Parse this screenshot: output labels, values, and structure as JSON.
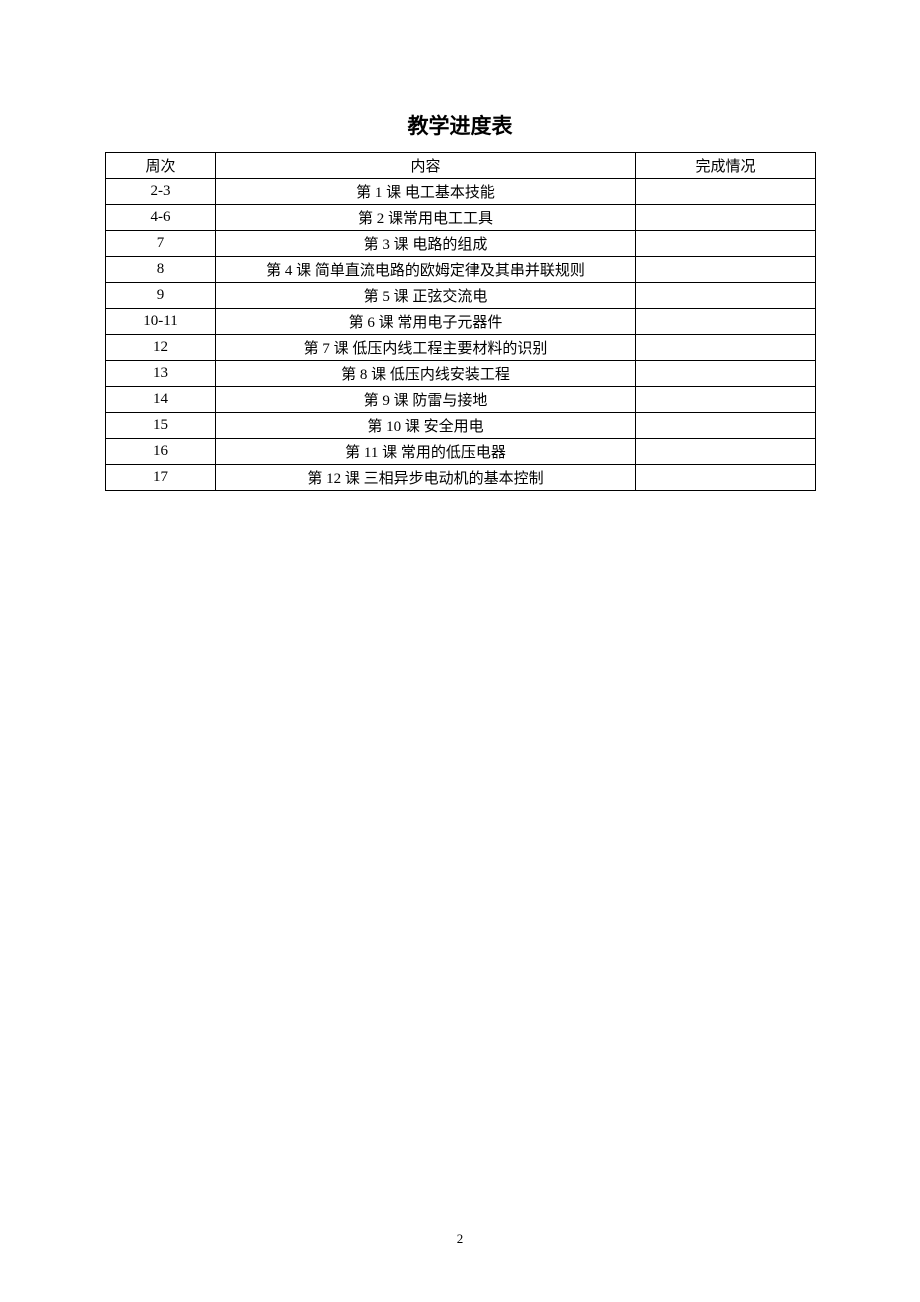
{
  "title": "教学进度表",
  "columns": {
    "week": "周次",
    "content": "内容",
    "status": "完成情况"
  },
  "rows": [
    {
      "week": "2-3",
      "content": "第 1 课 电工基本技能",
      "status": ""
    },
    {
      "week": "4-6",
      "content": "第 2 课常用电工工具",
      "status": ""
    },
    {
      "week": "7",
      "content": "第 3 课 电路的组成",
      "status": ""
    },
    {
      "week": "8",
      "content": "第 4 课 简单直流电路的欧姆定律及其串并联规则",
      "status": ""
    },
    {
      "week": "9",
      "content": "第 5 课 正弦交流电",
      "status": ""
    },
    {
      "week": "10-11",
      "content": "第 6 课 常用电子元器件",
      "status": ""
    },
    {
      "week": "12",
      "content": "第 7 课 低压内线工程主要材料的识别",
      "status": ""
    },
    {
      "week": "13",
      "content": "第 8 课 低压内线安装工程",
      "status": ""
    },
    {
      "week": "14",
      "content": "第 9 课  防雷与接地",
      "status": ""
    },
    {
      "week": "15",
      "content": "第 10 课 安全用电",
      "status": ""
    },
    {
      "week": "16",
      "content": "第 11 课  常用的低压电器",
      "status": ""
    },
    {
      "week": "17",
      "content": "第 12 课 三相异步电动机的基本控制",
      "status": ""
    }
  ],
  "pageNumber": "2"
}
